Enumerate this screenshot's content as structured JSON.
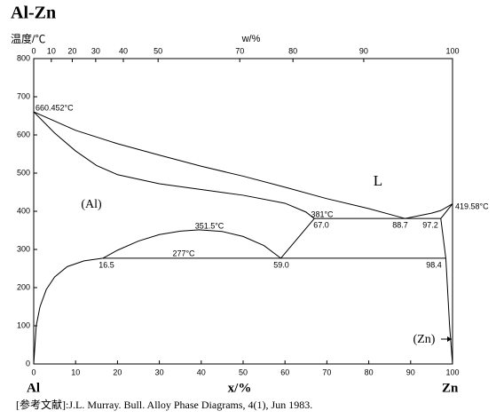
{
  "chart_data": {
    "type": "line",
    "title": "Al-Zn",
    "y_label": "温度/℃",
    "x_label": "x/%",
    "x2_label": "w/%",
    "left_element": "Al",
    "right_element": "Zn",
    "reference": "[参考文献]:J.L. Murray. Bull. Alloy Phase Diagrams, 4(1), Jun 1983.",
    "xlim": [
      0,
      100
    ],
    "ylim": [
      0,
      800
    ],
    "xticks": [
      0,
      10,
      20,
      30,
      40,
      50,
      60,
      70,
      80,
      90,
      100
    ],
    "yticks": [
      0,
      100,
      200,
      300,
      400,
      500,
      600,
      700,
      800
    ],
    "x2ticks": [
      0,
      {
        "value": 4.2,
        "label": "10"
      },
      {
        "value": 9.2,
        "label": "20"
      },
      {
        "value": 14.8,
        "label": "30"
      },
      {
        "value": 21.4,
        "label": "40"
      },
      {
        "value": 29.7,
        "label": "50"
      },
      {
        "value": 49.2,
        "label": "70"
      },
      {
        "value": 61.9,
        "label": "80"
      },
      {
        "value": 78.8,
        "label": "90"
      },
      100
    ],
    "series": [
      {
        "color": "#000000",
        "x": [
          0,
          10,
          20,
          30,
          40,
          50,
          60,
          70,
          80,
          88.7,
          95,
          97.2,
          100
        ],
        "values": [
          660.452,
          612,
          577,
          547,
          518,
          492,
          463,
          433,
          407,
          381,
          395,
          402,
          419.58
        ]
      },
      {
        "color": "#000000",
        "x": [
          0,
          5,
          10,
          15,
          20,
          30,
          40,
          50,
          60,
          65,
          67
        ],
        "values": [
          660.452,
          605,
          558,
          520,
          496,
          472,
          457,
          442,
          421,
          398,
          381
        ]
      },
      {
        "color": "#000000",
        "x": [
          67,
          97.2
        ],
        "values": [
          381,
          381
        ]
      },
      {
        "color": "#000000",
        "x": [
          100,
          97.2,
          98.4,
          99.3,
          100
        ],
        "values": [
          419.58,
          381,
          277,
          100,
          0
        ]
      },
      {
        "color": "#000000",
        "x": [
          16.5,
          20,
          25,
          30,
          35,
          39.5,
          45,
          50,
          55,
          59
        ],
        "values": [
          277,
          298,
          322,
          339,
          348,
          351.5,
          347,
          334,
          310,
          277
        ]
      },
      {
        "color": "#000000",
        "x": [
          16.5,
          98.4
        ],
        "values": [
          277,
          277
        ]
      },
      {
        "color": "#000000",
        "x": [
          59,
          67
        ],
        "values": [
          277,
          381
        ]
      },
      {
        "color": "#000000",
        "x": [
          0,
          0.6,
          1.5,
          3,
          5,
          8,
          12,
          16.5
        ],
        "values": [
          0,
          100,
          150,
          195,
          228,
          255,
          270,
          277
        ]
      }
    ],
    "annotations": [
      "660.452°C",
      "351.5°C",
      "381°C",
      "277°C",
      "419.58°C",
      "16.5",
      "59.0",
      "67.0",
      "88.7",
      "97.2",
      "98.4",
      "L",
      "(Al)",
      "(Zn)"
    ]
  }
}
